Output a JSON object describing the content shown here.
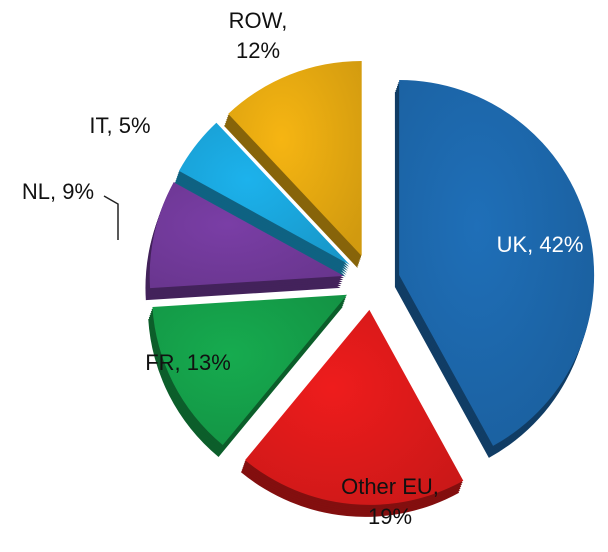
{
  "chart_data": {
    "type": "pie",
    "values": [
      42,
      19,
      13,
      9,
      5,
      12
    ],
    "value_labels": [
      "UK, 42%",
      "Other EU,\n19%",
      "FR, 13%",
      "NL, 9%",
      "IT, 5%",
      "ROW,\n12%"
    ],
    "colors": [
      "#1f6fb8",
      "#ee1c1c",
      "#16ab4f",
      "#7a3ea6",
      "#1cb2ec",
      "#f6b512"
    ],
    "start_angle": 90,
    "direction": "clockwise",
    "exploded": true
  }
}
